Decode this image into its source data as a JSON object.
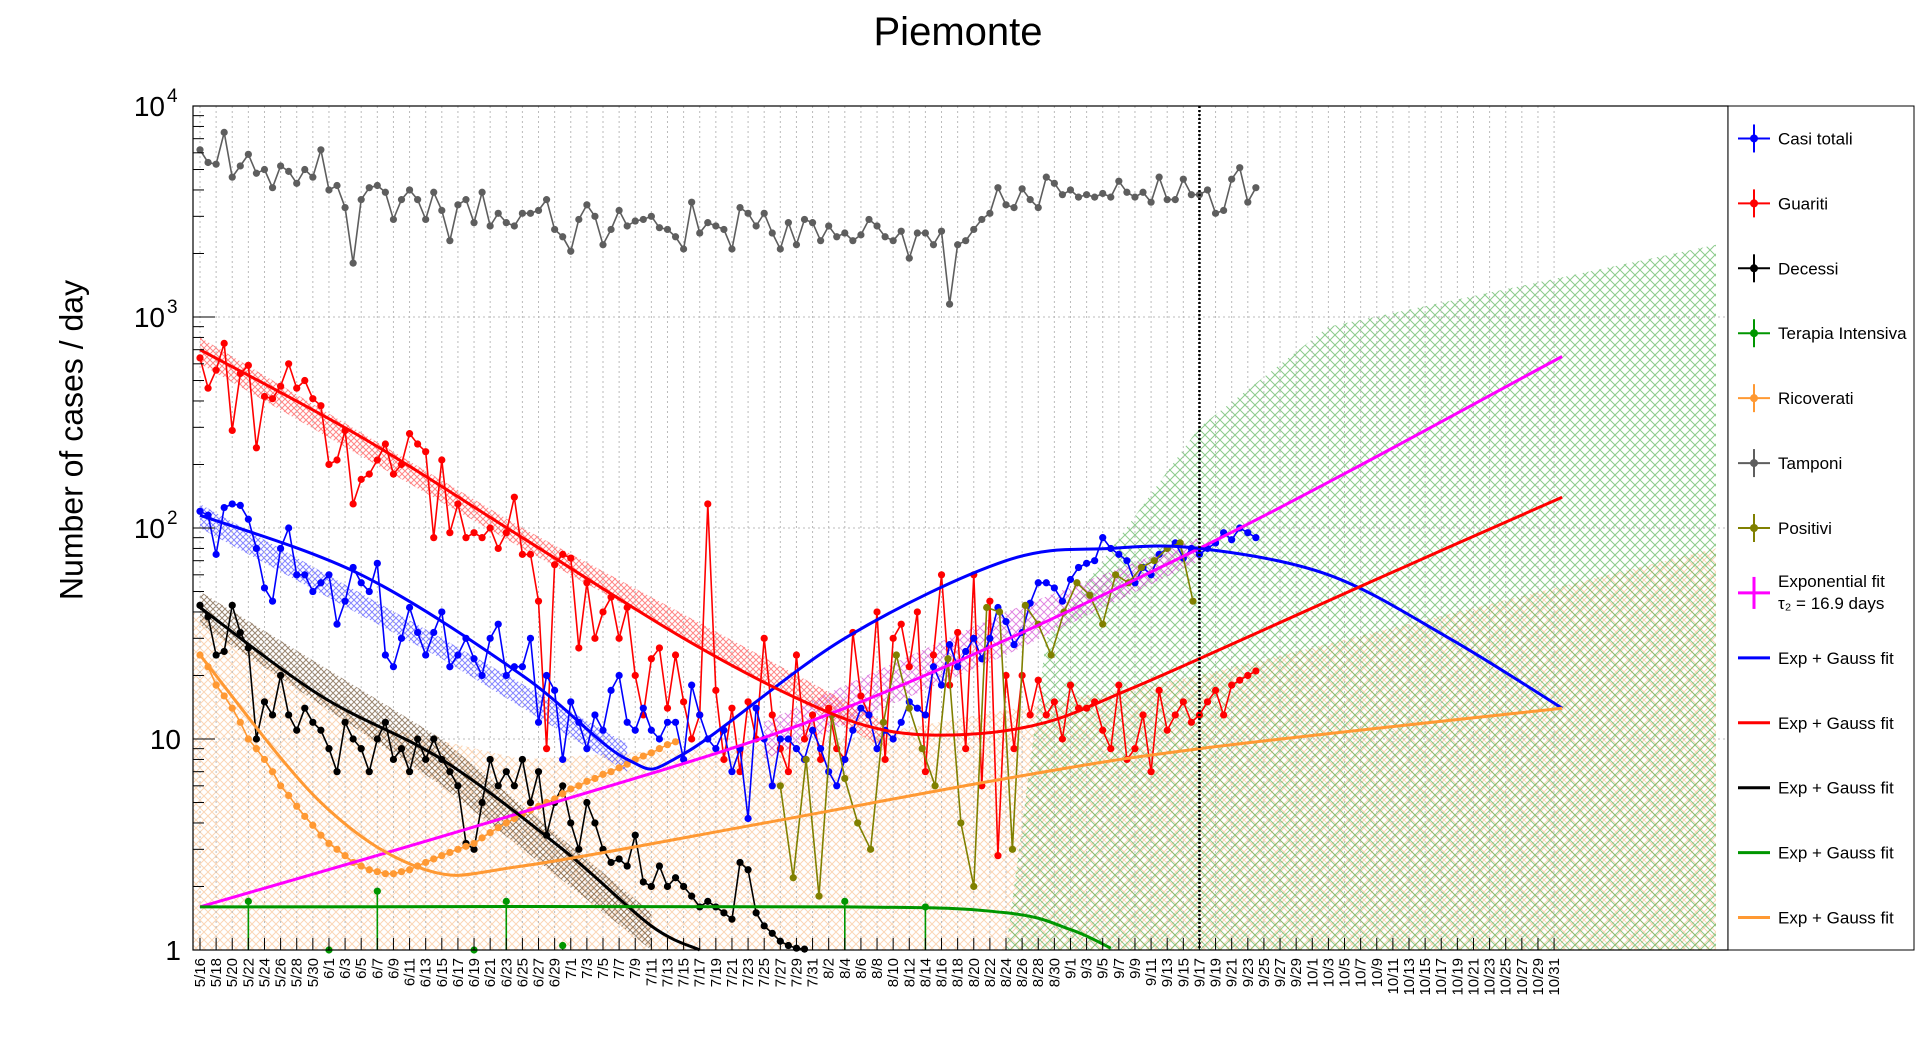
{
  "chart_data": {
    "type": "line",
    "title": "Piemonte",
    "xlabel": "",
    "ylabel": "Number of cases / day",
    "yscale": "log",
    "ylim": [
      1,
      10000
    ],
    "yticks": [
      {
        "value": 1,
        "label": "1"
      },
      {
        "value": 10,
        "label": "10"
      },
      {
        "value": 100,
        "label": "10",
        "sup": "2"
      },
      {
        "value": 1000,
        "label": "10",
        "sup": "3"
      },
      {
        "value": 10000,
        "label": "10",
        "sup": "4"
      }
    ],
    "x_tick_labels": [
      "5/16",
      "5/18",
      "5/20",
      "5/22",
      "5/24",
      "5/26",
      "5/28",
      "5/30",
      "6/1",
      "6/3",
      "6/5",
      "6/7",
      "6/9",
      "6/11",
      "6/13",
      "6/15",
      "6/17",
      "6/19",
      "6/21",
      "6/23",
      "6/25",
      "6/27",
      "6/29",
      "7/1",
      "7/3",
      "7/5",
      "7/7",
      "7/9",
      "7/11",
      "7/13",
      "7/15",
      "7/17",
      "7/19",
      "7/21",
      "7/23",
      "7/25",
      "7/27",
      "7/29",
      "7/31",
      "8/2",
      "8/4",
      "8/6",
      "8/8",
      "8/10",
      "8/12",
      "8/14",
      "8/16",
      "8/18",
      "8/20",
      "8/22",
      "8/24",
      "8/26",
      "8/28",
      "8/30",
      "9/1",
      "9/3",
      "9/5",
      "9/7",
      "9/9",
      "9/11",
      "9/13",
      "9/15",
      "9/17",
      "9/19",
      "9/21",
      "9/23",
      "9/25",
      "9/27",
      "9/29",
      "10/1",
      "10/3",
      "10/5",
      "10/7",
      "10/9",
      "10/11",
      "10/13",
      "10/15",
      "10/17",
      "10/19",
      "10/21",
      "10/23",
      "10/25",
      "10/27",
      "10/29",
      "10/31"
    ],
    "grid": true,
    "legend_position": "right",
    "vertical_marker": "9/17",
    "series": [
      {
        "name": "Tamponi",
        "color": "#5e5e5e",
        "values": [
          6200,
          5400,
          5300,
          7500,
          4600,
          5200,
          5900,
          4800,
          5000,
          4100,
          5200,
          4900,
          4300,
          5000,
          4600,
          6200,
          4000,
          4200,
          3300,
          1800,
          3600,
          4100,
          4200,
          3900,
          2900,
          3600,
          4000,
          3600,
          2900,
          3900,
          3200,
          2300,
          3400,
          3600,
          2800,
          3900,
          2700,
          3100,
          2800,
          2700,
          3100,
          3100,
          3200,
          3600,
          2600,
          2400,
          2050,
          2900,
          3400,
          3000,
          2200,
          2600,
          3200,
          2700,
          2850,
          2900,
          3000,
          2650,
          2600,
          2400,
          2100,
          3500,
          2500,
          2800,
          2700,
          2600,
          2100,
          3300,
          3100,
          2700,
          3100,
          2500,
          2100,
          2800,
          2200,
          2900,
          2800,
          2300,
          2700,
          2400,
          2500,
          2300,
          2450,
          2900,
          2700,
          2400,
          2300,
          2550,
          1900,
          2500,
          2500,
          2200,
          2550,
          1150,
          2200,
          2300,
          2600,
          2900,
          3100,
          4100,
          3400,
          3300,
          4050,
          3600,
          3300,
          4600,
          4300,
          3800,
          4000,
          3700,
          3800,
          3700,
          3850,
          3700,
          4400,
          3900,
          3700,
          3900,
          3500,
          4600,
          3600,
          3600,
          4500,
          3800,
          3800,
          4000,
          3100,
          3200,
          4500,
          5100,
          3500,
          4100
        ]
      },
      {
        "name": "Guariti",
        "color": "#ff0000",
        "values": [
          640,
          460,
          560,
          750,
          290,
          540,
          590,
          240,
          420,
          410,
          470,
          600,
          460,
          500,
          410,
          380,
          200,
          210,
          290,
          130,
          170,
          180,
          210,
          250,
          180,
          200,
          280,
          250,
          230,
          90,
          210,
          95,
          130,
          90,
          95,
          90,
          100,
          80,
          95,
          140,
          75,
          75,
          45,
          9,
          67,
          75,
          72,
          27,
          55,
          30,
          40,
          47,
          30,
          42,
          20,
          13,
          24,
          27,
          14,
          25,
          15,
          10,
          13,
          130,
          17,
          8,
          14,
          7,
          15,
          10,
          30,
          13,
          9,
          7,
          25,
          10,
          13,
          8,
          14,
          9,
          8,
          32,
          16,
          13,
          40,
          8,
          30,
          35,
          22,
          40,
          7,
          25,
          60,
          18,
          32,
          9,
          60,
          6,
          45,
          2.8,
          20,
          9,
          20,
          13,
          19,
          13,
          15,
          10,
          18,
          14,
          14,
          15,
          11,
          9,
          18,
          8,
          9,
          13,
          7,
          17,
          11,
          13,
          15,
          12,
          13,
          15,
          17,
          13,
          18,
          19,
          20,
          21
        ]
      },
      {
        "name": "Casi totali",
        "color": "#0000ff",
        "values": [
          120,
          115,
          75,
          125,
          130,
          128,
          110,
          80,
          52,
          45,
          80,
          100,
          60,
          60,
          50,
          55,
          60,
          35,
          45,
          65,
          55,
          50,
          68,
          25,
          22,
          30,
          42,
          32,
          25,
          32,
          40,
          22,
          25,
          30,
          24,
          20,
          30,
          35,
          20,
          22,
          22,
          30,
          12,
          20,
          17,
          8,
          15,
          12,
          9,
          13,
          11,
          17,
          20,
          12,
          11,
          14,
          11,
          10,
          12,
          12,
          8,
          18,
          13,
          10,
          9,
          11,
          7,
          9,
          4.2,
          14,
          10,
          6,
          10,
          10,
          9,
          8,
          11,
          9,
          7,
          6,
          8,
          11,
          14,
          13,
          9,
          11,
          10,
          12,
          15,
          14,
          13,
          22,
          18,
          28,
          22,
          26,
          30,
          24,
          30,
          42,
          36,
          28,
          32,
          44,
          55,
          55,
          52,
          45,
          57,
          65,
          68,
          70,
          90,
          80,
          75,
          70,
          55,
          65,
          60,
          75,
          80,
          85,
          72,
          80,
          75,
          80,
          85,
          95,
          88,
          100,
          95,
          90
        ]
      },
      {
        "name": "Decessi",
        "color": "#000000",
        "values": [
          43,
          38,
          25,
          26,
          43,
          32,
          27,
          10,
          15,
          13,
          20,
          13,
          11,
          14,
          12,
          11,
          9,
          7,
          12,
          10,
          9,
          7,
          10,
          12,
          8,
          9,
          7,
          10,
          8,
          10,
          8,
          7,
          6,
          3.2,
          3,
          5,
          8,
          6,
          7,
          6,
          8,
          5,
          7,
          3.5,
          5,
          6,
          4,
          3,
          5,
          4,
          3,
          2.6,
          2.7,
          2.5,
          3.5,
          2.1,
          2,
          2.5,
          2,
          2.2,
          2,
          1.8,
          1.6,
          1.7,
          1.6,
          1.5,
          1.4,
          2.6,
          2.4,
          1.5,
          1.3,
          1.2,
          1.1,
          1.05,
          1.02,
          1.01
        ]
      },
      {
        "name": "Terapia Intensiva",
        "color": "#009600",
        "values": [
          1.9,
          1.7,
          1.0,
          1.05,
          1.7,
          1.0,
          1.7,
          1.6
        ]
      },
      {
        "name": "Ricoverati",
        "color": "#ff9933",
        "values": [
          25,
          22,
          18,
          16,
          14,
          12,
          10,
          9,
          8,
          7,
          6,
          5.4,
          4.8,
          4.3,
          3.9,
          3.5,
          3.2,
          3.0,
          2.8,
          2.6,
          2.5,
          2.4,
          2.35,
          2.3,
          2.3,
          2.35,
          2.4,
          2.5,
          2.6,
          2.7,
          2.8,
          2.9,
          3.0,
          3.1,
          3.2,
          3.4,
          3.6,
          3.8,
          4.0,
          4.2,
          4.4,
          4.6,
          4.8,
          5.0,
          5.2,
          5.5,
          5.8,
          6.0,
          6.3,
          6.5,
          6.8,
          7.0,
          7.3,
          7.6,
          8.0,
          8.3,
          8.6,
          9.0,
          9.4,
          9.7
        ]
      },
      {
        "name": "Positivi",
        "color": "#808000",
        "values": [
          6,
          2.2,
          8,
          1.8,
          13,
          6.5,
          4,
          3,
          12,
          25,
          14,
          9,
          6,
          24,
          4,
          2,
          42,
          40,
          3,
          43,
          35,
          25,
          40,
          55,
          48,
          35,
          60,
          55,
          65,
          70,
          80,
          85,
          45
        ]
      }
    ],
    "legend": [
      {
        "label": "Casi totali",
        "color": "#0000ff",
        "kind": "marker"
      },
      {
        "label": "Guariti",
        "color": "#ff0000",
        "kind": "marker"
      },
      {
        "label": "Decessi",
        "color": "#000000",
        "kind": "marker"
      },
      {
        "label": "Terapia Intensiva",
        "color": "#009600",
        "kind": "marker"
      },
      {
        "label": "Ricoverati",
        "color": "#ff9933",
        "kind": "marker"
      },
      {
        "label": "Tamponi",
        "color": "#5e5e5e",
        "kind": "marker"
      },
      {
        "label": "Positivi",
        "color": "#808000",
        "kind": "marker"
      },
      {
        "label": "Exponential fit",
        "label2": "τ₂ = 16.9 days",
        "color": "#ff00ff",
        "kind": "cross"
      },
      {
        "label": "Exp + Gauss fit",
        "color": "#0000ff",
        "kind": "line"
      },
      {
        "label": "Exp + Gauss fit",
        "color": "#ff0000",
        "kind": "line"
      },
      {
        "label": "Exp + Gauss fit",
        "color": "#000000",
        "kind": "line"
      },
      {
        "label": "Exp + Gauss fit",
        "color": "#009600",
        "kind": "line"
      },
      {
        "label": "Exp + Gauss fit",
        "color": "#ff9933",
        "kind": "line"
      }
    ],
    "fits": [
      {
        "name": "exp-fit-magenta",
        "color": "#ff00ff",
        "points": [
          [
            0,
            1.6
          ],
          [
            40,
            4.5
          ],
          [
            80,
            14
          ],
          [
            124,
            80
          ],
          [
            169,
            650
          ]
        ]
      },
      {
        "name": "expgauss-fit-blue",
        "color": "#0000ff",
        "points": [
          [
            0,
            115
          ],
          [
            20,
            60
          ],
          [
            40,
            20
          ],
          [
            53,
            8
          ],
          [
            60,
            8.5
          ],
          [
            80,
            30
          ],
          [
            100,
            70
          ],
          [
            113,
            80
          ],
          [
            124,
            80
          ],
          [
            140,
            60
          ],
          [
            155,
            30
          ],
          [
            169,
            14
          ]
        ]
      },
      {
        "name": "expgauss-fit-red",
        "color": "#ff0000",
        "points": [
          [
            0,
            700
          ],
          [
            20,
            270
          ],
          [
            40,
            90
          ],
          [
            60,
            30
          ],
          [
            75,
            15
          ],
          [
            85,
            11
          ],
          [
            95,
            10.5
          ],
          [
            105,
            12
          ],
          [
            115,
            17
          ],
          [
            124,
            24
          ],
          [
            145,
            55
          ],
          [
            169,
            140
          ]
        ]
      },
      {
        "name": "expgauss-fit-black",
        "color": "#000000",
        "points": [
          [
            0,
            42
          ],
          [
            15,
            16
          ],
          [
            30,
            8
          ],
          [
            45,
            3
          ],
          [
            56,
            1.3
          ],
          [
            62,
            1
          ]
        ]
      },
      {
        "name": "expgauss-fit-green",
        "color": "#009600",
        "points": [
          [
            0,
            1.6
          ],
          [
            80,
            1.6
          ],
          [
            100,
            1.5
          ],
          [
            108,
            1.25
          ],
          [
            113,
            1.02
          ]
        ]
      },
      {
        "name": "expgauss-fit-orange",
        "color": "#ff9933",
        "points": [
          [
            0,
            25
          ],
          [
            15,
            5
          ],
          [
            28,
            2.4
          ],
          [
            40,
            2.5
          ],
          [
            70,
            4
          ],
          [
            100,
            6.5
          ],
          [
            124,
            9
          ],
          [
            169,
            14
          ]
        ]
      }
    ]
  }
}
